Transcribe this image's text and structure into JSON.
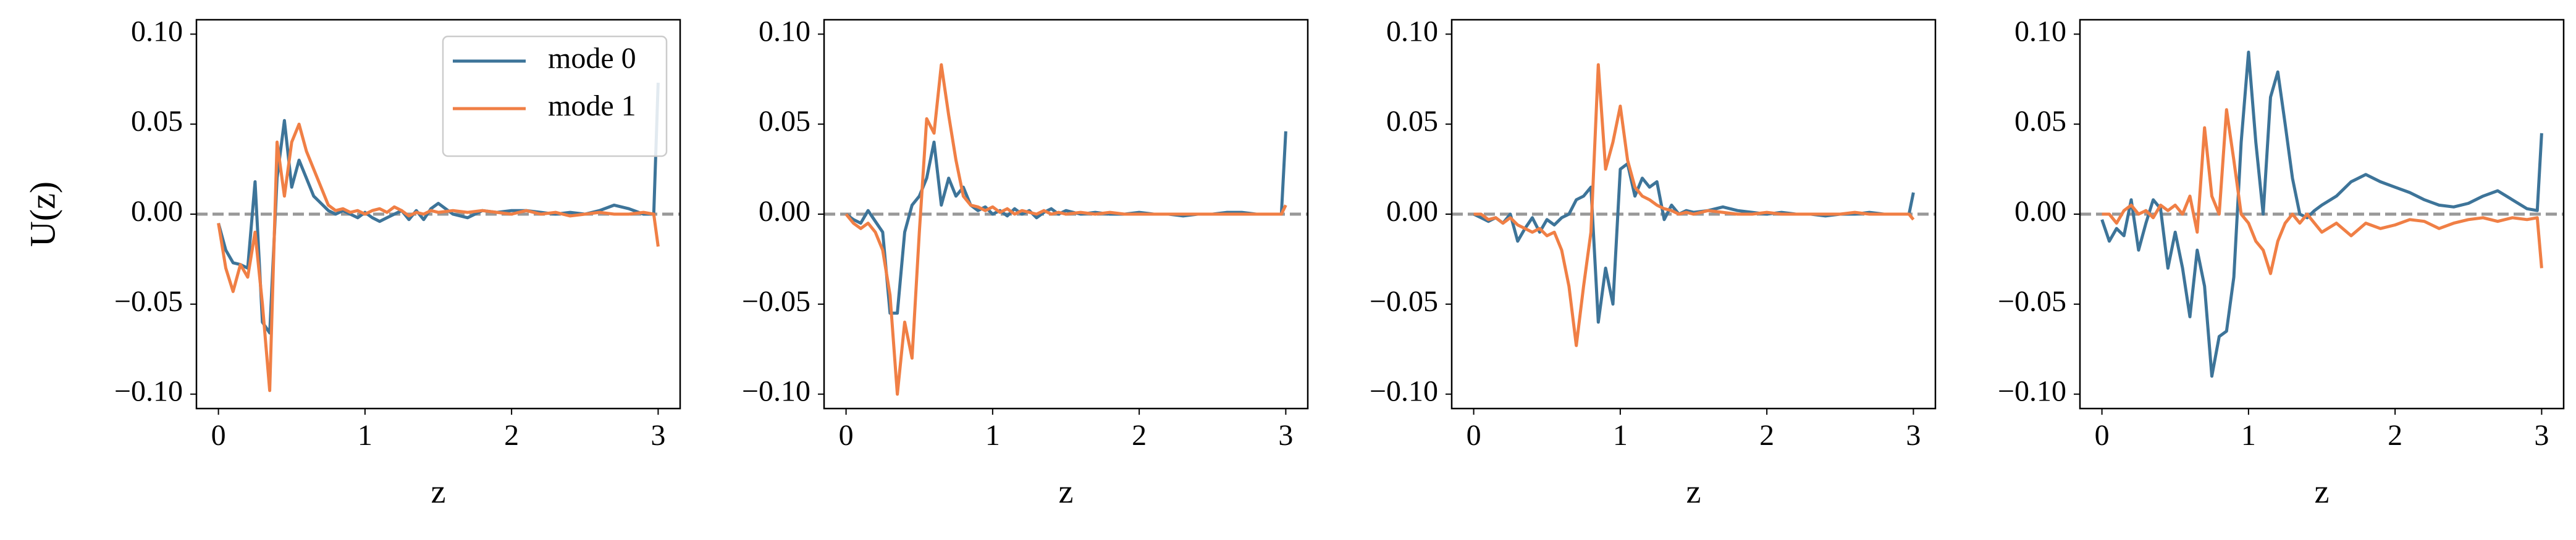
{
  "chart_data": [
    {
      "type": "line",
      "ylabel": "U(z)",
      "xlabel": "z",
      "legend": "upper right",
      "reference_line": 0,
      "xlim": [
        -0.15,
        3.15
      ],
      "ylim": [
        -0.108,
        0.108
      ],
      "xticks": [
        0,
        1,
        2,
        3
      ],
      "yticks": [
        {
          "value": 0.1,
          "label": "0.10"
        },
        {
          "value": 0.05,
          "label": "0.05"
        },
        {
          "value": 0,
          "label": "0.00"
        },
        {
          "value": -0.05,
          "label": "−0.05"
        },
        {
          "value": -0.1,
          "label": "−0.10"
        }
      ],
      "x": [
        0,
        0.05,
        0.1,
        0.15,
        0.2,
        0.25,
        0.3,
        0.35,
        0.4,
        0.45,
        0.5,
        0.55,
        0.6,
        0.65,
        0.7,
        0.75,
        0.8,
        0.85,
        0.9,
        0.95,
        1.0,
        1.05,
        1.1,
        1.15,
        1.2,
        1.25,
        1.3,
        1.35,
        1.4,
        1.45,
        1.5,
        1.6,
        1.7,
        1.8,
        1.9,
        2.0,
        2.1,
        2.2,
        2.3,
        2.4,
        2.5,
        2.6,
        2.7,
        2.8,
        2.9,
        2.97,
        3.0
      ],
      "series": [
        {
          "name": "mode 0",
          "color": "#3d7499",
          "values": [
            -0.005,
            -0.02,
            -0.027,
            -0.028,
            -0.03,
            0.018,
            -0.06,
            -0.066,
            0.02,
            0.052,
            0.015,
            0.03,
            0.02,
            0.01,
            0.006,
            0.002,
            0.0,
            0.002,
            0.0,
            -0.002,
            0.001,
            -0.002,
            -0.004,
            -0.002,
            0.0,
            0.002,
            -0.003,
            0.002,
            -0.003,
            0.003,
            0.006,
            0.0,
            -0.002,
            0.002,
            0.001,
            0.002,
            0.002,
            0.001,
            0.0,
            0.001,
            0.0,
            0.002,
            0.005,
            0.003,
            0.0,
            0.0,
            0.073
          ]
        },
        {
          "name": "mode 1",
          "color": "#f07f45",
          "values": [
            -0.005,
            -0.03,
            -0.043,
            -0.028,
            -0.035,
            -0.01,
            -0.05,
            -0.098,
            0.04,
            0.01,
            0.04,
            0.05,
            0.035,
            0.025,
            0.015,
            0.005,
            0.002,
            0.003,
            0.001,
            0.002,
            0.0,
            0.002,
            0.003,
            0.001,
            0.004,
            0.002,
            -0.001,
            0.001,
            0.0,
            0.002,
            0.001,
            0.002,
            0.001,
            0.002,
            0.001,
            0.0,
            0.002,
            0.0,
            0.001,
            -0.001,
            0.0,
            0.001,
            0.0,
            0.0,
            0.001,
            0.0,
            -0.018
          ]
        }
      ]
    },
    {
      "type": "line",
      "xlabel": "z",
      "reference_line": 0,
      "xlim": [
        -0.15,
        3.15
      ],
      "ylim": [
        -0.108,
        0.108
      ],
      "xticks": [
        0,
        1,
        2,
        3
      ],
      "yticks": [
        {
          "value": 0.1,
          "label": "0.10"
        },
        {
          "value": 0.05,
          "label": "0.05"
        },
        {
          "value": 0,
          "label": "0.00"
        },
        {
          "value": -0.05,
          "label": "−0.05"
        },
        {
          "value": -0.1,
          "label": "−0.10"
        }
      ],
      "x": [
        0,
        0.05,
        0.1,
        0.15,
        0.2,
        0.25,
        0.3,
        0.35,
        0.4,
        0.45,
        0.5,
        0.55,
        0.6,
        0.65,
        0.7,
        0.75,
        0.8,
        0.85,
        0.9,
        0.95,
        1.0,
        1.05,
        1.1,
        1.15,
        1.2,
        1.25,
        1.3,
        1.35,
        1.4,
        1.45,
        1.5,
        1.6,
        1.7,
        1.8,
        1.9,
        2.0,
        2.1,
        2.2,
        2.3,
        2.4,
        2.5,
        2.6,
        2.7,
        2.8,
        2.9,
        2.97,
        3.0
      ],
      "series": [
        {
          "color": "#3d7499",
          "values": [
            0,
            -0.003,
            -0.005,
            0.002,
            -0.004,
            -0.01,
            -0.055,
            -0.055,
            -0.01,
            0.005,
            0.01,
            0.02,
            0.04,
            0.005,
            0.02,
            0.01,
            0.015,
            0.005,
            0.002,
            0.004,
            0.0,
            0.002,
            -0.001,
            0.003,
            0.0,
            0.002,
            -0.002,
            0.001,
            0.003,
            0.0,
            0.002,
            0.0,
            0.001,
            0.0,
            0.0,
            0.001,
            0.0,
            0.0,
            -0.001,
            0.0,
            0.0,
            0.001,
            0.001,
            0.0,
            0.0,
            0.0,
            0.046
          ]
        },
        {
          "color": "#f07f45",
          "values": [
            0,
            -0.005,
            -0.008,
            -0.005,
            -0.01,
            -0.02,
            -0.045,
            -0.1,
            -0.06,
            -0.08,
            -0.01,
            0.053,
            0.045,
            0.083,
            0.055,
            0.03,
            0.01,
            0.005,
            0.004,
            0.002,
            0.004,
            0.001,
            0.003,
            0.0,
            0.002,
            0.001,
            0.0,
            0.002,
            0.0,
            0.001,
            0.0,
            0.001,
            0.0,
            0.001,
            0.0,
            0.0,
            0.0,
            0.0,
            0.0,
            0.0,
            0.0,
            0.0,
            0.0,
            0.0,
            0.0,
            0.0,
            0.005
          ]
        }
      ]
    },
    {
      "type": "line",
      "xlabel": "z",
      "reference_line": 0,
      "xlim": [
        -0.15,
        3.15
      ],
      "ylim": [
        -0.108,
        0.108
      ],
      "xticks": [
        0,
        1,
        2,
        3
      ],
      "yticks": [
        {
          "value": 0.1,
          "label": "0.10"
        },
        {
          "value": 0.05,
          "label": "0.05"
        },
        {
          "value": 0,
          "label": "0.00"
        },
        {
          "value": -0.05,
          "label": "−0.05"
        },
        {
          "value": -0.1,
          "label": "−0.10"
        }
      ],
      "x": [
        0,
        0.05,
        0.1,
        0.15,
        0.2,
        0.25,
        0.3,
        0.35,
        0.4,
        0.45,
        0.5,
        0.55,
        0.6,
        0.65,
        0.7,
        0.75,
        0.8,
        0.85,
        0.9,
        0.95,
        1.0,
        1.05,
        1.1,
        1.15,
        1.2,
        1.25,
        1.3,
        1.35,
        1.4,
        1.45,
        1.5,
        1.6,
        1.7,
        1.8,
        1.9,
        2.0,
        2.1,
        2.2,
        2.3,
        2.4,
        2.5,
        2.6,
        2.7,
        2.8,
        2.9,
        2.97,
        3.0
      ],
      "series": [
        {
          "color": "#3d7499",
          "values": [
            0,
            -0.002,
            -0.004,
            -0.002,
            -0.005,
            0.0,
            -0.015,
            -0.008,
            -0.002,
            -0.01,
            -0.003,
            -0.006,
            -0.002,
            0.0,
            0.008,
            0.01,
            0.015,
            -0.06,
            -0.03,
            -0.05,
            0.025,
            0.028,
            0.01,
            0.02,
            0.015,
            0.018,
            -0.003,
            0.005,
            0.0,
            0.002,
            0.001,
            0.002,
            0.004,
            0.002,
            0.001,
            0.0,
            0.001,
            0.0,
            0.0,
            -0.001,
            0.0,
            0.0,
            0.001,
            0.0,
            0.0,
            0.0,
            0.012
          ]
        },
        {
          "color": "#f07f45",
          "values": [
            0,
            0.0,
            -0.003,
            -0.002,
            -0.005,
            -0.002,
            -0.006,
            -0.008,
            -0.01,
            -0.008,
            -0.012,
            -0.01,
            -0.02,
            -0.04,
            -0.073,
            -0.04,
            -0.01,
            0.083,
            0.025,
            0.04,
            0.06,
            0.03,
            0.015,
            0.01,
            0.008,
            0.005,
            0.003,
            0.002,
            0.0,
            0.001,
            0.0,
            0.002,
            0.001,
            0.0,
            0.0,
            0.001,
            0.0,
            0.0,
            0.0,
            0.0,
            0.0,
            0.001,
            0.0,
            0.0,
            0.0,
            0.0,
            -0.003
          ]
        }
      ]
    },
    {
      "type": "line",
      "xlabel": "z",
      "reference_line": 0,
      "xlim": [
        -0.15,
        3.15
      ],
      "ylim": [
        -0.108,
        0.108
      ],
      "xticks": [
        0,
        1,
        2,
        3
      ],
      "yticks": [
        {
          "value": 0.1,
          "label": "0.10"
        },
        {
          "value": 0.05,
          "label": "0.05"
        },
        {
          "value": 0,
          "label": "0.00"
        },
        {
          "value": -0.05,
          "label": "−0.05"
        },
        {
          "value": -0.1,
          "label": "−0.10"
        }
      ],
      "x": [
        0,
        0.05,
        0.1,
        0.15,
        0.2,
        0.25,
        0.3,
        0.35,
        0.4,
        0.45,
        0.5,
        0.55,
        0.6,
        0.65,
        0.7,
        0.75,
        0.8,
        0.85,
        0.9,
        0.95,
        1.0,
        1.05,
        1.1,
        1.15,
        1.2,
        1.25,
        1.3,
        1.35,
        1.4,
        1.45,
        1.5,
        1.6,
        1.7,
        1.8,
        1.9,
        2.0,
        2.1,
        2.2,
        2.3,
        2.4,
        2.5,
        2.6,
        2.7,
        2.8,
        2.9,
        2.97,
        3.0
      ],
      "series": [
        {
          "color": "#3d7499",
          "values": [
            -0.003,
            -0.015,
            -0.008,
            -0.012,
            0.008,
            -0.02,
            -0.005,
            0.008,
            0.003,
            -0.03,
            -0.01,
            -0.03,
            -0.057,
            -0.02,
            -0.04,
            -0.09,
            -0.068,
            -0.065,
            -0.035,
            0.04,
            0.09,
            0.04,
            0.0,
            0.065,
            0.079,
            0.05,
            0.02,
            0.0,
            -0.002,
            0.002,
            0.005,
            0.01,
            0.018,
            0.022,
            0.018,
            0.015,
            0.012,
            0.008,
            0.005,
            0.004,
            0.006,
            0.01,
            0.013,
            0.008,
            0.003,
            0.002,
            0.045
          ]
        },
        {
          "color": "#f07f45",
          "values": [
            0,
            0.0,
            -0.005,
            0.002,
            0.005,
            0.0,
            0.002,
            -0.002,
            0.005,
            0.002,
            0.005,
            0.0,
            0.01,
            -0.01,
            0.048,
            0.01,
            0.0,
            0.058,
            0.03,
            0.0,
            -0.005,
            -0.015,
            -0.02,
            -0.033,
            -0.015,
            -0.005,
            0.0,
            -0.005,
            0.0,
            -0.005,
            -0.01,
            -0.005,
            -0.012,
            -0.005,
            -0.008,
            -0.006,
            -0.003,
            -0.004,
            -0.008,
            -0.005,
            -0.003,
            -0.002,
            -0.004,
            -0.002,
            -0.003,
            -0.002,
            -0.03
          ]
        }
      ]
    }
  ]
}
